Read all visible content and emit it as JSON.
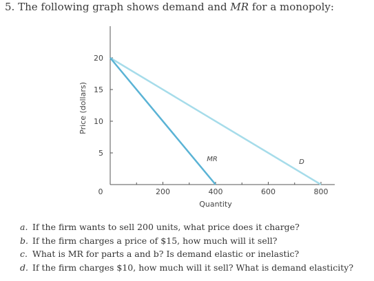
{
  "question": {
    "number": "5.",
    "text_before": "The following graph shows demand and",
    "text_em": "MR",
    "text_after": "for a monopoly:"
  },
  "chart_data": {
    "type": "line",
    "xlabel": "Quantity",
    "ylabel": "Price (dollars)",
    "xlim": [
      0,
      800
    ],
    "ylim": [
      0,
      20
    ],
    "x_ticks": [
      0,
      200,
      400,
      600,
      800
    ],
    "y_ticks": [
      5,
      10,
      15,
      20
    ],
    "origin_label": "0",
    "series": [
      {
        "name": "D",
        "x": [
          0,
          800
        ],
        "y": [
          20,
          0
        ],
        "color": "#a6dcea"
      },
      {
        "name": "MR",
        "x": [
          0,
          400
        ],
        "y": [
          20,
          0
        ],
        "color": "#5ab3d5"
      }
    ]
  },
  "questions": [
    {
      "marker": "a.",
      "text": "If the firm wants to sell 200 units, what price does it charge?"
    },
    {
      "marker": "b.",
      "text": "If the firm charges a price of $15, how much will it sell?"
    },
    {
      "marker": "c.",
      "text": "What is MR for parts a and b? Is demand elastic or inelastic?"
    },
    {
      "marker": "d.",
      "text": "If the firm charges $10, how much will it sell? What is demand elasticity?"
    }
  ]
}
